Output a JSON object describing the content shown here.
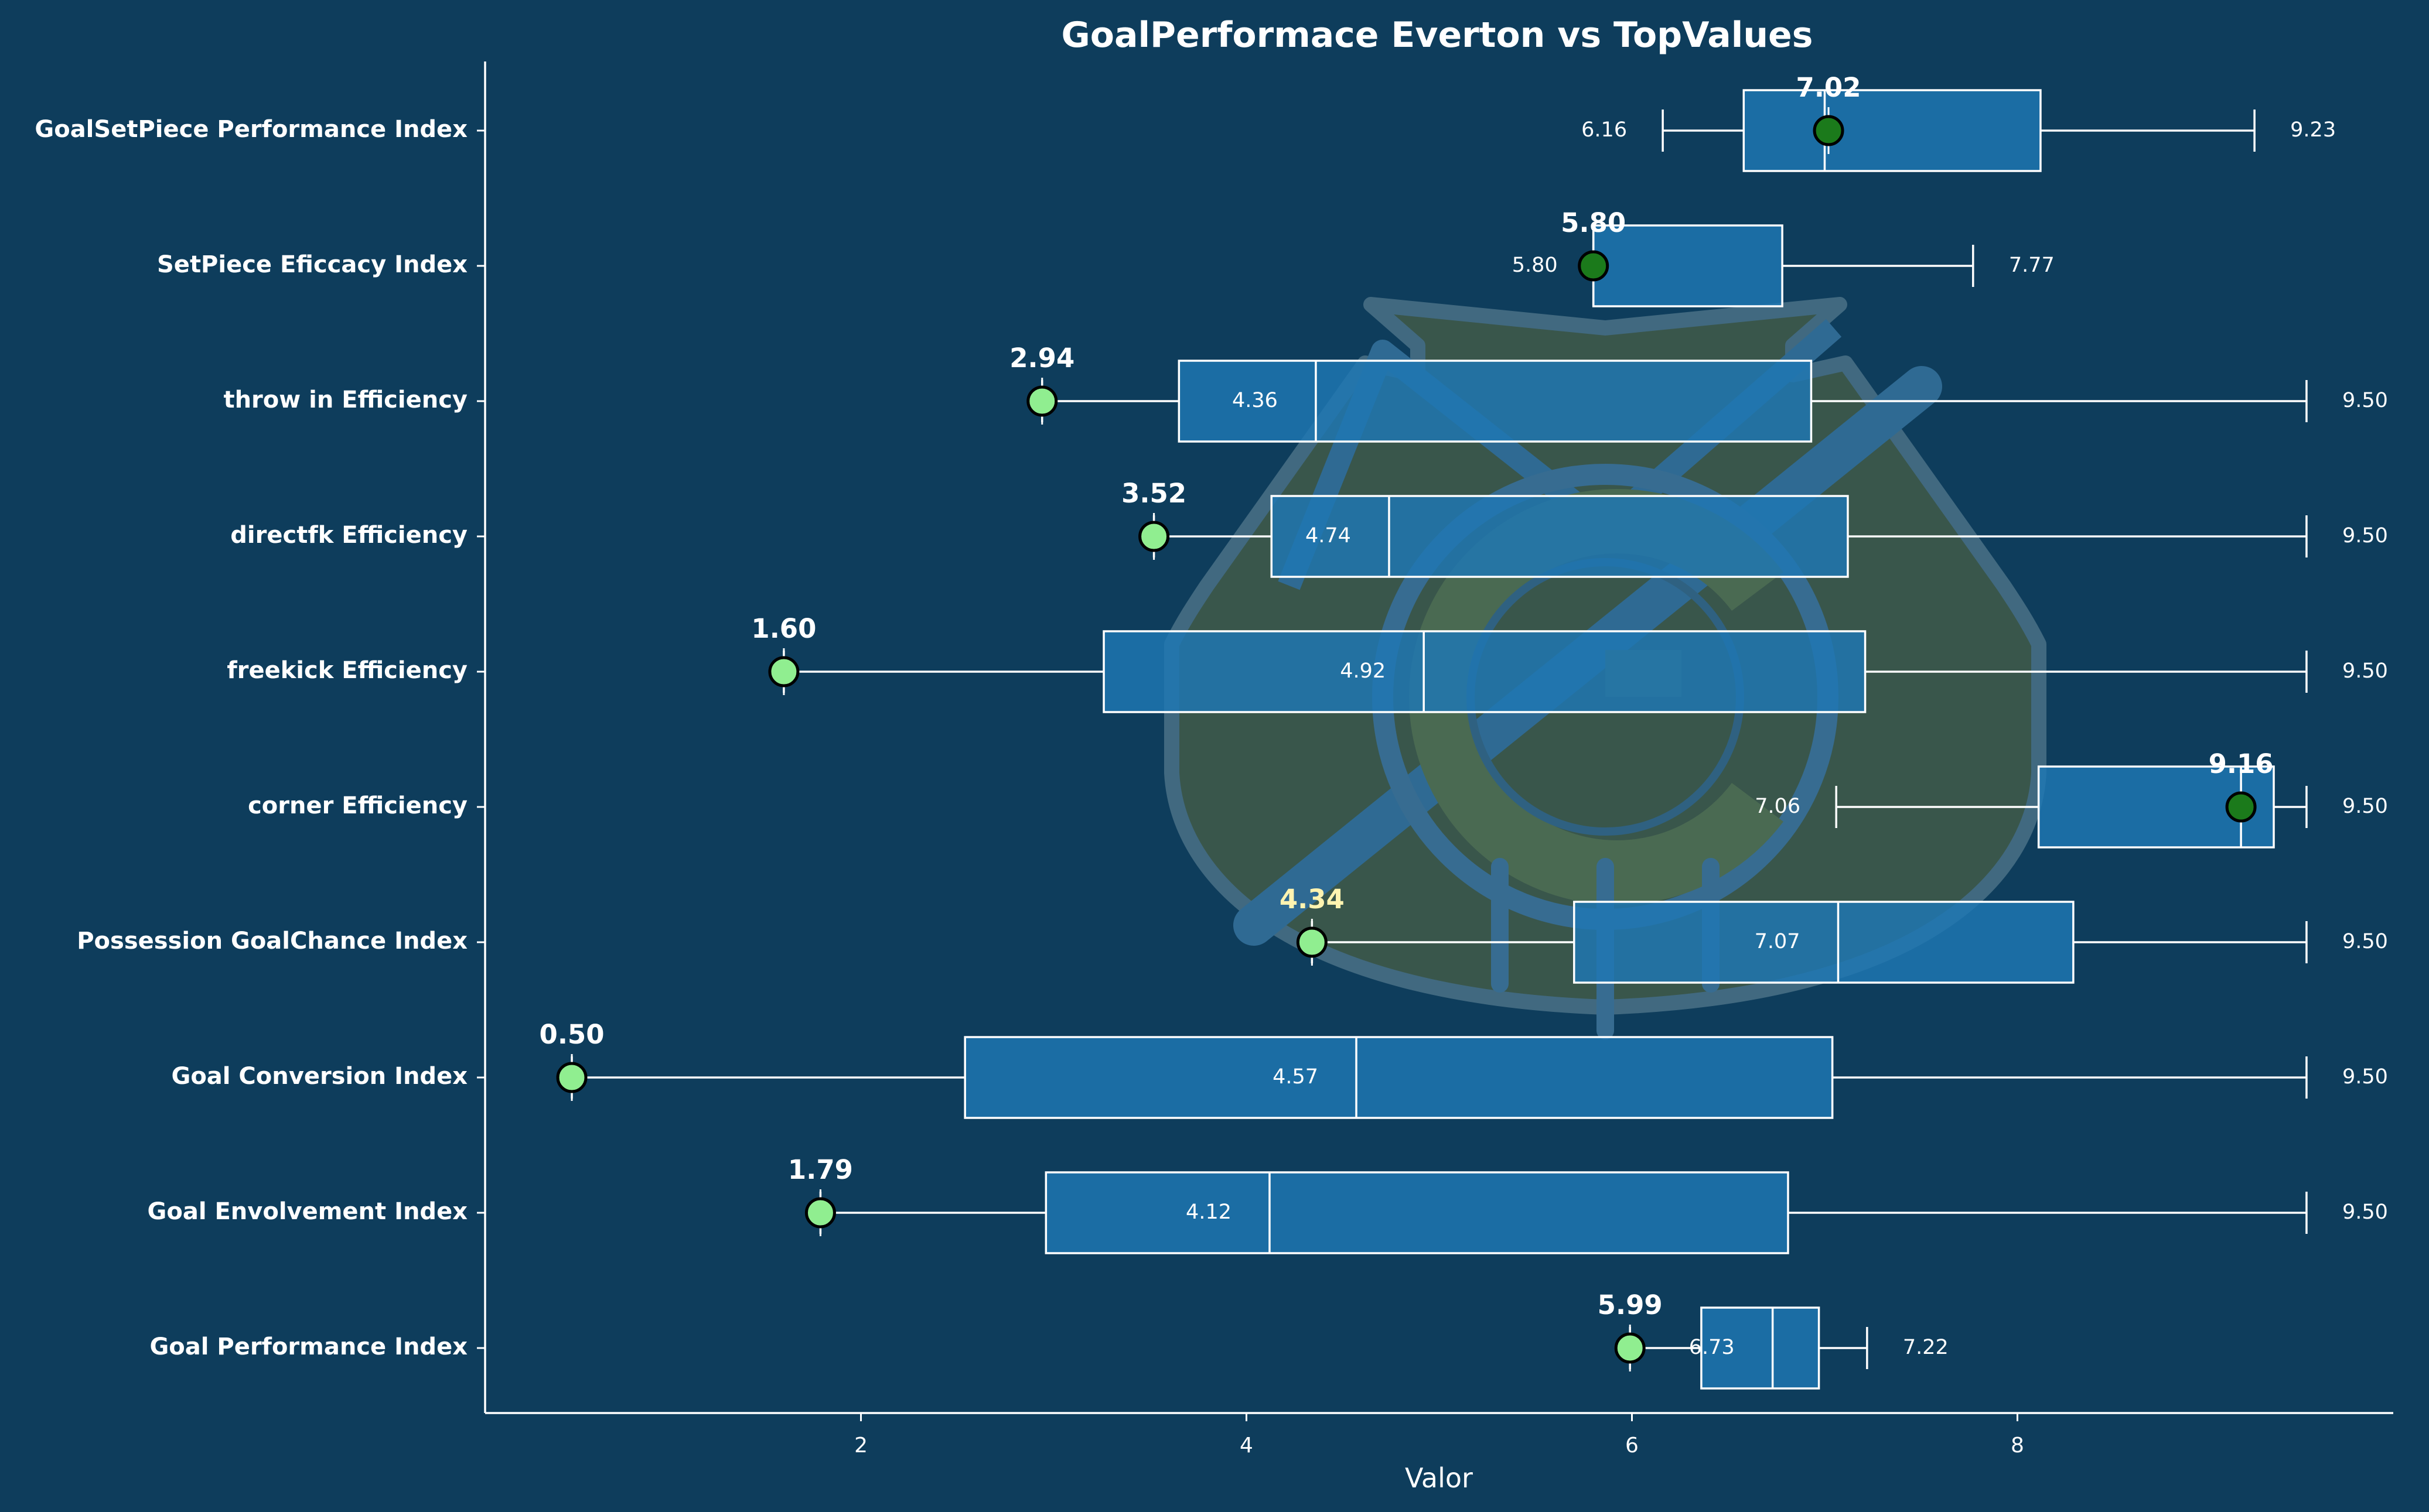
{
  "chart_data": {
    "type": "boxplot",
    "title": "GoalPerformace Everton vs TopValues",
    "xlabel": "Valor",
    "ylabel": "",
    "xlim": [
      0.05,
      9.95
    ],
    "xticks": [
      "2",
      "4",
      "6",
      "8"
    ],
    "grid": false,
    "background_logo": "everton-crest",
    "colors": {
      "background": "#0e3d5c",
      "box_fill": "#1f77b4",
      "box_edge": "#ffffff",
      "marker_above_median": "#1b7a1b",
      "marker_below_median": "#90ee90",
      "text": "#ffffff",
      "highlight_label": "#fff3b0"
    },
    "categories": [
      "GoalSetPiece Performance Index",
      "SetPiece Eficcacy Index",
      "throw in Efficiency",
      "directfk Efficiency",
      "freekick Efficiency",
      "corner Efficiency",
      "Possession GoalChance Index",
      "Goal Conversion Index",
      "Goal Envolvement Index",
      "Goal Performance Index"
    ],
    "boxes": [
      {
        "whisker_low": 6.16,
        "q1": 6.58,
        "median": 7.0,
        "q3": 8.12,
        "whisker_high": 9.23,
        "low_label": "6.16",
        "high_label": "9.23",
        "median_label": "",
        "everton": 7.02,
        "everton_label": "7.02"
      },
      {
        "whisker_low": 5.8,
        "q1": 5.8,
        "median": 5.8,
        "q3": 6.78,
        "whisker_high": 7.77,
        "low_label": "5.80",
        "high_label": "7.77",
        "median_label": "",
        "everton": 5.8,
        "everton_label": "5.80"
      },
      {
        "whisker_low": 2.94,
        "q1": 3.65,
        "median": 4.36,
        "q3": 6.93,
        "whisker_high": 9.5,
        "low_label": "",
        "high_label": "9.50",
        "median_label": "4.36",
        "everton": 2.94,
        "everton_label": "2.94"
      },
      {
        "whisker_low": 3.52,
        "q1": 4.13,
        "median": 4.74,
        "q3": 7.12,
        "whisker_high": 9.5,
        "low_label": "",
        "high_label": "9.50",
        "median_label": "4.74",
        "everton": 3.52,
        "everton_label": "3.52"
      },
      {
        "whisker_low": 1.6,
        "q1": 3.26,
        "median": 4.92,
        "q3": 7.21,
        "whisker_high": 9.5,
        "low_label": "",
        "high_label": "9.50",
        "median_label": "4.92",
        "everton": 1.6,
        "everton_label": "1.60"
      },
      {
        "whisker_low": 7.06,
        "q1": 8.11,
        "median": 9.16,
        "q3": 9.33,
        "whisker_high": 9.5,
        "low_label": "7.06",
        "high_label": "9.50",
        "median_label": "",
        "everton": 9.16,
        "everton_label": "9.16"
      },
      {
        "whisker_low": 4.34,
        "q1": 5.7,
        "median": 7.07,
        "q3": 8.29,
        "whisker_high": 9.5,
        "low_label": "",
        "high_label": "9.50",
        "median_label": "7.07",
        "everton": 4.34,
        "everton_label": "4.34"
      },
      {
        "whisker_low": 0.5,
        "q1": 2.54,
        "median": 4.57,
        "q3": 7.04,
        "whisker_high": 9.5,
        "low_label": "",
        "high_label": "9.50",
        "median_label": "4.57",
        "everton": 0.5,
        "everton_label": "0.50"
      },
      {
        "whisker_low": 1.79,
        "q1": 2.96,
        "median": 4.12,
        "q3": 6.81,
        "whisker_high": 9.5,
        "low_label": "",
        "high_label": "9.50",
        "median_label": "4.12",
        "everton": 1.79,
        "everton_label": "1.79"
      },
      {
        "whisker_low": 5.99,
        "q1": 6.36,
        "median": 6.73,
        "q3": 6.97,
        "whisker_high": 7.22,
        "low_label": "",
        "high_label": "7.22",
        "median_label": "6.73",
        "everton": 5.99,
        "everton_label": "5.99"
      }
    ]
  }
}
